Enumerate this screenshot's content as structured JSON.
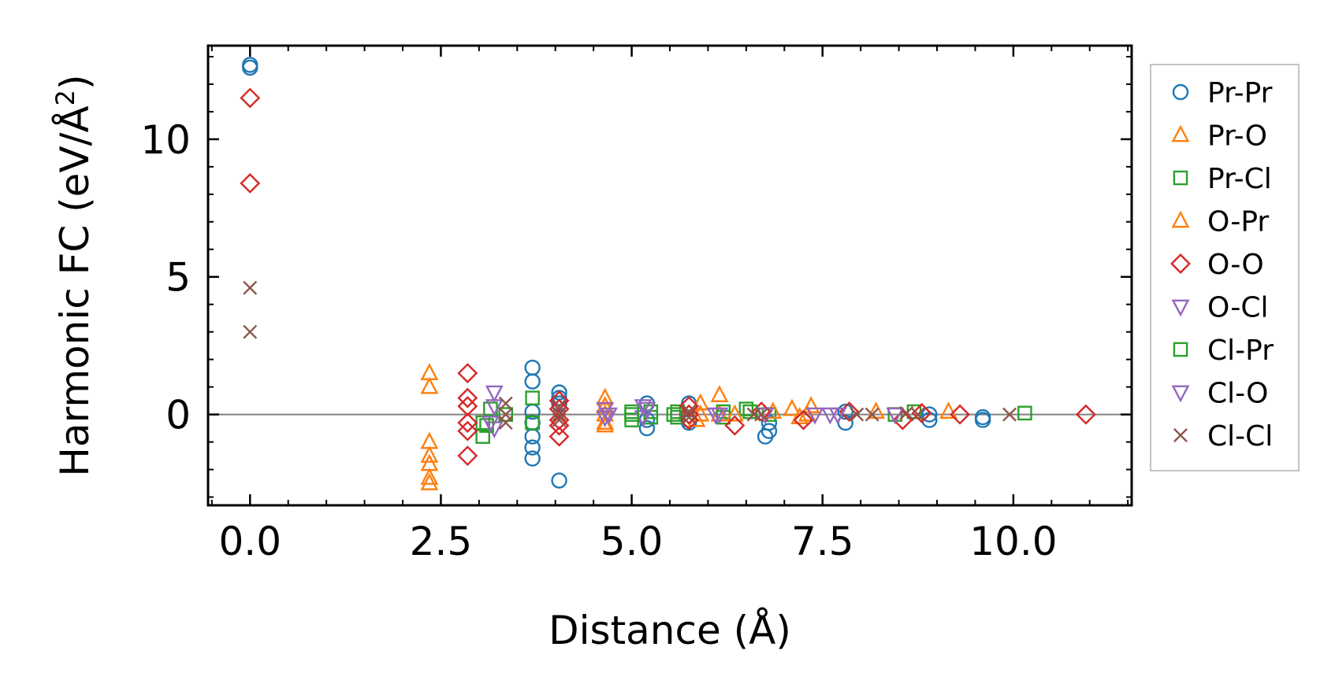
{
  "chart_data": {
    "type": "scatter",
    "title": "",
    "xlabel": "Distance (Å)",
    "ylabel_main": "Harmonic FC (eV/Å",
    "ylabel_sup": "2",
    "ylabel_close": ")",
    "xlim": [
      -0.55,
      11.55
    ],
    "ylim": [
      -3.3,
      13.4
    ],
    "xticks": [
      0.0,
      2.5,
      5.0,
      7.5,
      10.0
    ],
    "xtick_labels": [
      "0.0",
      "2.5",
      "5.0",
      "7.5",
      "10.0"
    ],
    "yticks": [
      0,
      5,
      10
    ],
    "ytick_labels": [
      "0",
      "5",
      "10"
    ],
    "reference_line_y": 0,
    "legend_position": "outside-right",
    "series": [
      {
        "name": "Pr-Pr",
        "marker": "circle",
        "color": "#1f77b4",
        "x": [
          0.0,
          0.0,
          3.7,
          3.7,
          3.7,
          3.7,
          3.7,
          3.7,
          3.7,
          4.05,
          4.05,
          4.05,
          4.05,
          5.2,
          5.2,
          5.2,
          5.75,
          5.75,
          5.75,
          6.75,
          6.8,
          6.8,
          7.8,
          7.8,
          8.9,
          8.9,
          9.6,
          9.6
        ],
        "y": [
          12.7,
          12.6,
          1.7,
          1.2,
          0.1,
          -0.8,
          -1.2,
          -1.6,
          -0.3,
          0.8,
          0.6,
          0.4,
          -2.4,
          0.4,
          -0.2,
          -0.5,
          0.4,
          -0.2,
          -0.3,
          -0.8,
          -0.6,
          -0.3,
          0.1,
          -0.3,
          0.0,
          -0.2,
          -0.1,
          -0.2
        ]
      },
      {
        "name": "Pr-O",
        "marker": "triangle-up",
        "color": "#ff7f0e",
        "x": [
          2.35,
          2.35,
          2.35,
          2.35,
          2.35,
          2.35,
          2.35,
          4.65,
          4.65,
          4.65,
          4.65,
          5.9,
          5.9,
          6.15,
          6.15,
          7.1,
          7.35,
          8.2,
          9.15
        ],
        "y": [
          1.5,
          1.0,
          -1.0,
          -1.5,
          -1.8,
          -2.3,
          -2.5,
          0.6,
          0.3,
          0.0,
          -0.4,
          0.4,
          0.0,
          0.7,
          0.0,
          0.2,
          0.3,
          0.1,
          0.1
        ]
      },
      {
        "name": "Pr-Cl",
        "marker": "square",
        "color": "#2ca02c",
        "x": [
          3.05,
          3.05,
          3.15,
          3.7,
          3.7,
          5.0,
          5.0,
          5.25,
          5.25,
          5.6,
          5.6,
          6.2,
          6.2,
          6.5,
          6.8,
          8.45,
          8.7,
          10.15
        ],
        "y": [
          -0.8,
          -0.3,
          0.2,
          0.6,
          -0.3,
          0.1,
          -0.2,
          0.1,
          -0.1,
          0.1,
          -0.1,
          0.1,
          -0.1,
          0.2,
          0.0,
          0.0,
          0.1,
          0.05
        ]
      },
      {
        "name": "O-Pr",
        "marker": "triangle-up",
        "color": "#ff7f0e",
        "x": [
          4.65,
          4.65,
          5.85,
          6.35,
          6.85,
          7.2,
          7.3
        ],
        "y": [
          0.3,
          -0.3,
          -0.2,
          0.0,
          0.1,
          -0.1,
          0.0
        ]
      },
      {
        "name": "O-O",
        "marker": "diamond",
        "color": "#d62728",
        "x": [
          0.0,
          0.0,
          2.85,
          2.85,
          2.85,
          2.85,
          2.85,
          2.85,
          4.05,
          4.05,
          4.05,
          4.05,
          4.05,
          5.75,
          5.75,
          5.75,
          6.35,
          6.7,
          7.25,
          7.85,
          8.55,
          8.8,
          9.3,
          10.95
        ],
        "y": [
          11.5,
          8.4,
          1.5,
          0.6,
          0.3,
          -0.3,
          -0.6,
          -1.5,
          0.5,
          0.2,
          -0.2,
          -0.4,
          -0.8,
          0.3,
          0.0,
          -0.2,
          -0.4,
          0.1,
          -0.2,
          0.1,
          -0.2,
          0.05,
          0.0,
          0.0
        ]
      },
      {
        "name": "O-Cl",
        "marker": "triangle-down",
        "color": "#9467bd",
        "x": [
          3.2,
          3.2,
          3.2,
          4.65,
          4.65,
          5.15,
          5.15,
          6.1,
          6.75,
          7.4,
          7.7,
          8.45
        ],
        "y": [
          0.8,
          0.3,
          -0.5,
          0.2,
          -0.1,
          0.3,
          -0.1,
          0.0,
          0.0,
          0.0,
          0.0,
          0.0
        ]
      },
      {
        "name": "Cl-Pr",
        "marker": "square",
        "color": "#2ca02c",
        "x": [
          3.1,
          3.35,
          3.7,
          5.0,
          5.55,
          6.55
        ],
        "y": [
          -0.4,
          0.0,
          -0.3,
          0.0,
          0.0,
          0.1
        ]
      },
      {
        "name": "Cl-O",
        "marker": "triangle-down",
        "color": "#9467bd",
        "x": [
          3.15,
          4.7,
          5.2,
          6.15,
          7.6
        ],
        "y": [
          -0.3,
          0.0,
          0.2,
          0.0,
          0.0
        ]
      },
      {
        "name": "Cl-Cl",
        "marker": "x",
        "color": "#8c564b",
        "x": [
          0.0,
          0.0,
          3.35,
          3.35,
          3.35,
          4.05,
          4.05,
          4.05,
          5.75,
          5.75,
          6.6,
          6.7,
          7.95,
          8.15,
          8.6,
          8.75,
          9.95
        ],
        "y": [
          4.6,
          3.0,
          0.4,
          0.0,
          -0.3,
          0.3,
          0.0,
          -0.2,
          0.1,
          -0.1,
          0.0,
          0.0,
          0.0,
          0.0,
          0.05,
          0.0,
          0.0
        ]
      }
    ]
  }
}
